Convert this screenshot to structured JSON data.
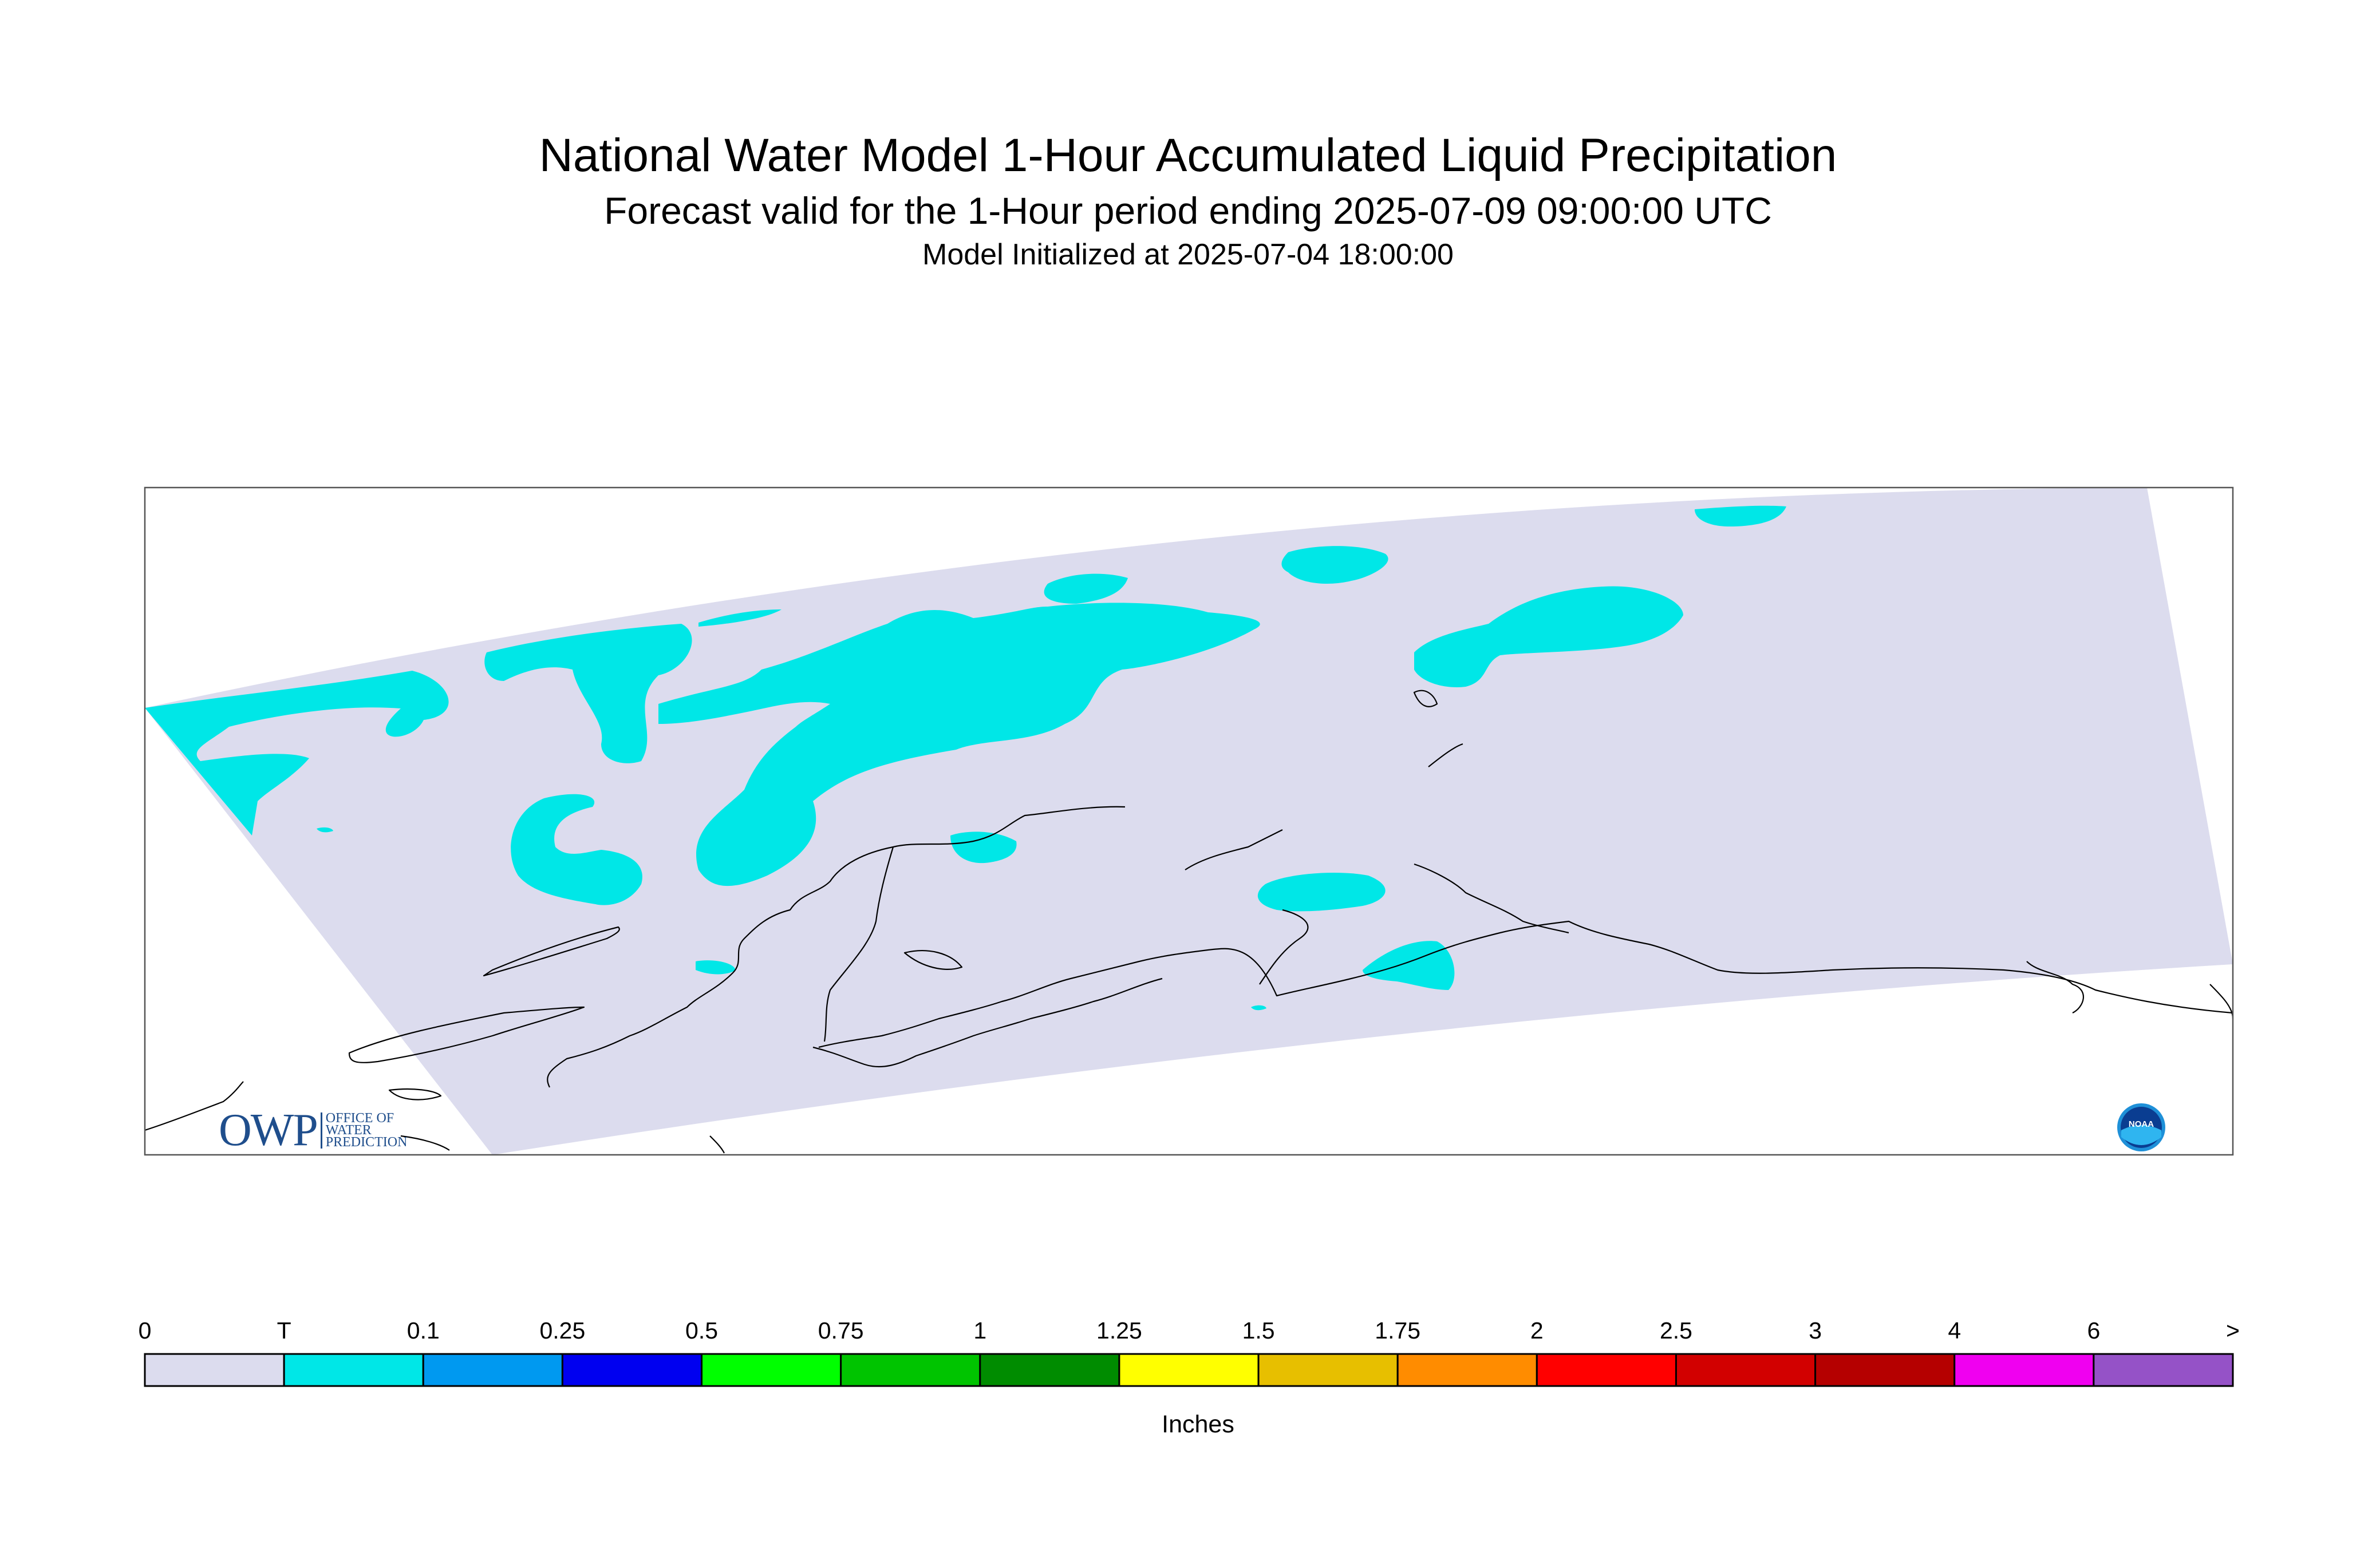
{
  "header": {
    "title": "National Water Model 1-Hour Accumulated Liquid Precipitation",
    "subtitle": "Forecast valid for the 1-Hour period ending 2025-07-09 09:00:00 UTC",
    "init": "Model Initialized at 2025-07-04 18:00:00"
  },
  "map": {
    "domain_color": "#dcdcee",
    "precip_color": "#00e7e7",
    "coast_color": "#000000"
  },
  "legend": {
    "unit": "Inches",
    "tick_labels": [
      "0",
      "T",
      "0.1",
      "0.25",
      "0.5",
      "0.75",
      "1",
      "1.25",
      "1.5",
      "1.75",
      "2",
      "2.5",
      "3",
      "4",
      "6",
      ">"
    ],
    "colors": [
      "#dcdcee",
      "#00e7e7",
      "#0099f0",
      "#0000f0",
      "#00ff00",
      "#00c400",
      "#008c00",
      "#ffff00",
      "#e7bf00",
      "#ff8c00",
      "#ff0000",
      "#d20000",
      "#b50000",
      "#f000f0",
      "#9552c7"
    ]
  },
  "logos": {
    "owp_letters": "OWP",
    "owp_text": [
      "Office of",
      "Water",
      "Prediction"
    ],
    "noaa_text": "NOAA"
  }
}
